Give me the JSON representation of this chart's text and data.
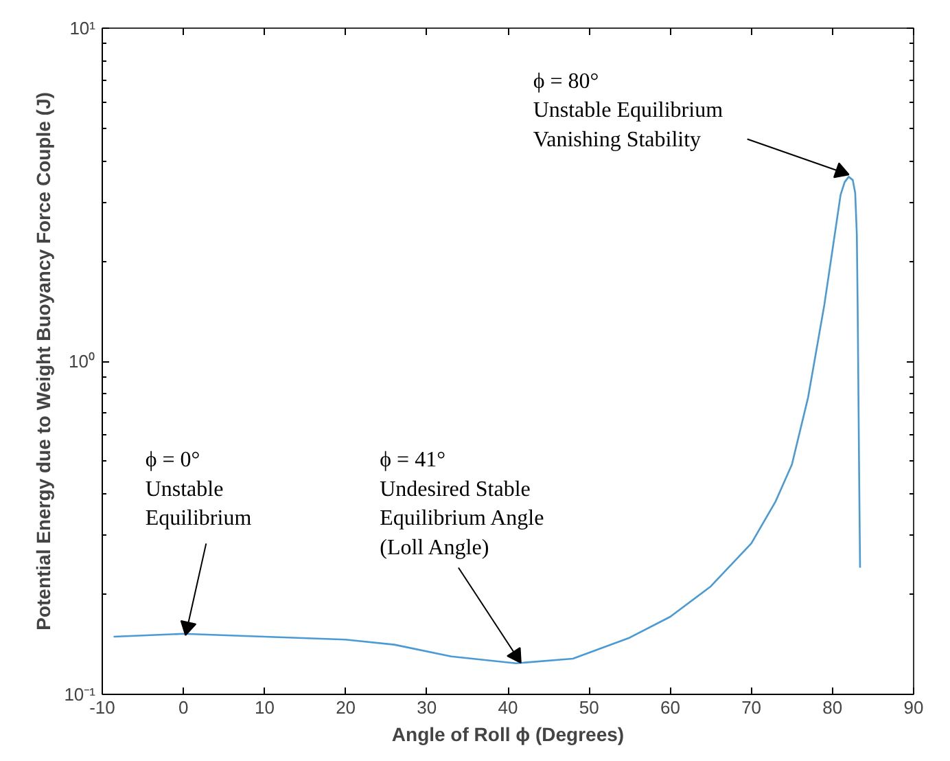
{
  "chart_data": {
    "type": "line",
    "xlabel": "Angle of Roll ϕ (Degrees)",
    "ylabel": "Potential Energy due to Weight Buoyancy Force Couple (J)",
    "log": "y",
    "grid": false,
    "marker": "none",
    "line_style": "solid",
    "x": [
      -8.6,
      0,
      10,
      20,
      26,
      33,
      41,
      48,
      55,
      60,
      65,
      70,
      73,
      75,
      77,
      79,
      80,
      81,
      81.5,
      82,
      82.5,
      82.8,
      83,
      83.1,
      83.3,
      83.4
    ],
    "series": [
      {
        "color": "#4a9ad6",
        "values": [
          0.149,
          0.152,
          0.149,
          0.146,
          0.141,
          0.13,
          0.124,
          0.128,
          0.148,
          0.171,
          0.211,
          0.284,
          0.38,
          0.49,
          0.78,
          1.48,
          2.16,
          3.16,
          3.45,
          3.58,
          3.5,
          3.2,
          2.4,
          1.48,
          0.42,
          0.24
        ]
      }
    ],
    "xlim": [
      -10,
      90
    ],
    "xticks": [
      -10,
      0,
      10,
      20,
      30,
      40,
      50,
      60,
      70,
      80,
      90
    ],
    "ylim": [
      0.1,
      10
    ],
    "yticks": [
      {
        "value": 0.1,
        "label": "10⁻¹"
      },
      {
        "value": 1,
        "label": "10⁰"
      },
      {
        "value": 10,
        "label": "10¹"
      }
    ],
    "annotations": [
      {
        "text": "ϕ = 0°\nUnstable\nEquilibrium",
        "x": 0.5,
        "y": 0.155
      },
      {
        "text": "ϕ = 41°\nUndesired Stable\nEquilibrium Angle\n(Loll Angle)",
        "x": 41,
        "y": 0.127
      },
      {
        "text": "ϕ = 80°\nUnstable Equilibrium\nVanishing Stability",
        "x": 81,
        "y": 3.6
      }
    ]
  }
}
